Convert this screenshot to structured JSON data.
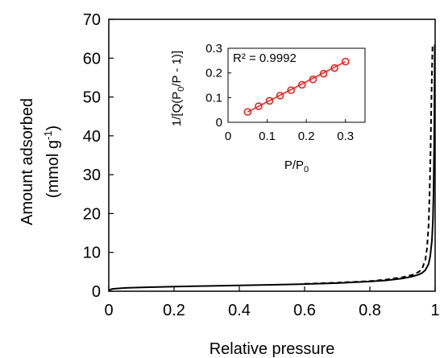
{
  "chart_data": [
    {
      "type": "line",
      "xlabel": "Relative pressure",
      "ylabel_line1": "Amount adsorbed",
      "ylabel_line2_prefix": "(mmol g",
      "ylabel_line2_sup": "-1",
      "ylabel_line2_suffix": ")",
      "xlim": [
        0,
        1
      ],
      "ylim": [
        0,
        70
      ],
      "x_ticks": [
        "0",
        "0.2",
        "0.4",
        "0.6",
        "0.8",
        "1"
      ],
      "x_tick_values": [
        0,
        0.2,
        0.4,
        0.6,
        0.8,
        1
      ],
      "y_ticks": [
        "0",
        "10",
        "20",
        "30",
        "40",
        "50",
        "60",
        "70"
      ],
      "y_tick_values": [
        0,
        10,
        20,
        30,
        40,
        50,
        60,
        70
      ],
      "grid": false,
      "series": [
        {
          "style": "solid",
          "color": "#000000",
          "x": [
            0.0,
            0.01,
            0.05,
            0.1,
            0.2,
            0.3,
            0.4,
            0.5,
            0.6,
            0.7,
            0.8,
            0.85,
            0.9,
            0.93,
            0.95,
            0.96,
            0.97,
            0.98,
            0.985,
            0.99,
            0.993,
            0.995,
            0.997,
            0.998,
            0.999
          ],
          "y": [
            0.2,
            0.6,
            0.85,
            1.0,
            1.2,
            1.35,
            1.5,
            1.65,
            1.85,
            2.1,
            2.5,
            2.8,
            3.3,
            3.8,
            4.3,
            4.7,
            5.4,
            7.0,
            9.0,
            13.0,
            18.0,
            25.0,
            38.0,
            50.0,
            63.5
          ]
        },
        {
          "style": "dashed",
          "color": "#000000",
          "x": [
            0.6,
            0.7,
            0.8,
            0.85,
            0.9,
            0.93,
            0.95,
            0.96,
            0.97,
            0.975,
            0.98,
            0.983,
            0.986,
            0.988,
            0.99,
            0.992
          ],
          "y": [
            1.9,
            2.2,
            2.6,
            3.0,
            3.6,
            4.2,
            5.0,
            5.8,
            8.0,
            11.0,
            17.0,
            25.0,
            36.0,
            46.0,
            56.0,
            63.5
          ]
        }
      ]
    },
    {
      "type": "scatter",
      "xlabel_prefix": "P/P",
      "xlabel_sub": "0",
      "ylabel_parts": [
        "1/[Q(P",
        "0",
        "/P - 1)]"
      ],
      "xlim": [
        0,
        0.35
      ],
      "ylim": [
        0,
        0.3
      ],
      "x_ticks": [
        "0",
        "0.1",
        "0.2",
        "0.3"
      ],
      "x_tick_values": [
        0,
        0.1,
        0.2,
        0.3
      ],
      "y_ticks": [
        "0",
        "0.1",
        "0.2",
        "0.3"
      ],
      "y_tick_values": [
        0,
        0.1,
        0.2,
        0.3
      ],
      "annotation": "R² = 0.9992",
      "points_color": "#e8211d",
      "fit_color": "#e8211d",
      "x": [
        0.05,
        0.078,
        0.106,
        0.133,
        0.161,
        0.189,
        0.217,
        0.244,
        0.272,
        0.3
      ],
      "y": [
        0.042,
        0.065,
        0.087,
        0.108,
        0.13,
        0.152,
        0.174,
        0.197,
        0.22,
        0.246
      ],
      "fit": {
        "x": [
          0.05,
          0.3
        ],
        "y": [
          0.042,
          0.246
        ]
      }
    }
  ]
}
